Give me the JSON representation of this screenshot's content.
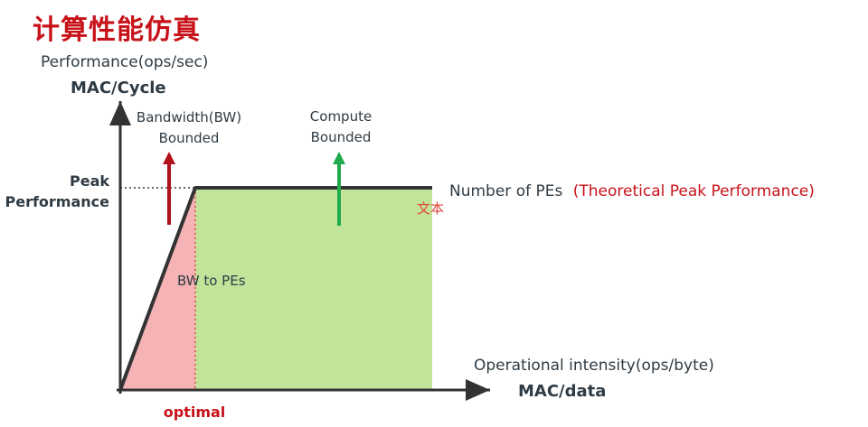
{
  "slide": {
    "title": "计算性能仿真"
  },
  "diagram": {
    "y_axis_title": "Performance(ops/sec)",
    "y_axis_unit": "MAC/Cycle",
    "x_axis_title": "Operational intensity(ops/byte)",
    "x_axis_unit": "MAC/data",
    "peak_label_line1": "Peak",
    "peak_label_line2": "Performance",
    "optimal_label": "optimal",
    "bw_region_label_line1": "Bandwidth(BW)",
    "bw_region_label_line2": "Bounded",
    "compute_region_label_line1": "Compute",
    "compute_region_label_line2": "Bounded",
    "bw_to_pes_label": "BW to PEs",
    "roof_label": "Number of PEs",
    "roof_label_highlight": "(Theoretical Peak Performance)",
    "text_placeholder": "文本"
  },
  "colors": {
    "title_red": "#c8121a",
    "bw_region_fill": "#f6b3b5",
    "compute_region_fill": "#c2e39a",
    "bw_arrow": "#b0121b",
    "compute_arrow": "#1faa4b",
    "axis": "#333333",
    "roof_line": "#333333"
  }
}
